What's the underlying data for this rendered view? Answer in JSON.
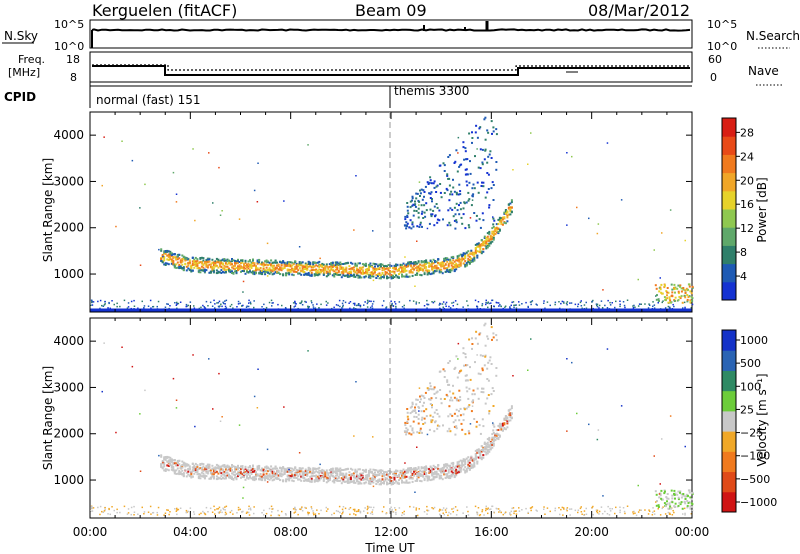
{
  "header": {
    "station": "Kerguelen (fitACF)",
    "beam": "Beam 09",
    "date": "08/Mar/2012"
  },
  "top_panel": {
    "left_label": "N.Sky",
    "right_label": "N.Search",
    "left_ticks": [
      "10^5",
      "10^0"
    ],
    "right_ticks": [
      "10^5",
      "10^0"
    ]
  },
  "freq_panel": {
    "left_label_line1": "Freq.",
    "left_label_line2": "[MHz]",
    "left_ticks": [
      "18",
      "8"
    ],
    "right_label": "Nave",
    "right_ticks": [
      "60",
      "0"
    ],
    "cpid_label": "CPID",
    "cpid_modes": [
      "normal (fast) 151",
      "themis 3300"
    ]
  },
  "chart_data": [
    {
      "type": "heatmap",
      "title": "",
      "xlabel": "Time UT",
      "ylabel": "Slant Range [km]",
      "x_ticks": [
        "00:00",
        "04:00",
        "08:00",
        "12:00",
        "16:00",
        "20:00",
        "00:00"
      ],
      "x_range_hours": [
        0,
        24
      ],
      "y_ticks": [
        1000,
        2000,
        3000,
        4000
      ],
      "ylim": [
        180,
        4500
      ],
      "colorbar": {
        "label": "Power [dB]",
        "ticks": [
          "4",
          "8",
          "12",
          "16",
          "20",
          "24",
          "28"
        ],
        "range": [
          0,
          30
        ],
        "colors": [
          "#1432d2",
          "#1e5ab4",
          "#2f7f6a",
          "#5fa86a",
          "#8fc850",
          "#e6d22a",
          "#f0a628",
          "#f07a1e",
          "#e84a18",
          "#d81e14"
        ]
      },
      "features": [
        {
          "name": "backscatter band",
          "t_start_h": 2.8,
          "t_end_h": 16.8,
          "range_km_start": 1400,
          "range_km_mid": 1050,
          "range_km_end": 2500,
          "peak_power_db": 22
        },
        {
          "name": "high-range plume",
          "t_start_h": 12.5,
          "t_end_h": 16.2,
          "range_km_max": 4300
        },
        {
          "name": "near-range echoes",
          "range_km": [
            250,
            450
          ],
          "power_db": 8
        },
        {
          "name": "late-evening patch",
          "t_start_h": 22.5,
          "t_end_h": 24,
          "range_km": [
            400,
            800
          ],
          "power_db": 18
        }
      ]
    },
    {
      "type": "heatmap",
      "title": "",
      "xlabel": "Time UT",
      "ylabel": "Slant Range [km]",
      "x_ticks": [
        "00:00",
        "04:00",
        "08:00",
        "12:00",
        "16:00",
        "20:00",
        "00:00"
      ],
      "x_range_hours": [
        0,
        24
      ],
      "y_ticks": [
        1000,
        2000,
        3000,
        4000
      ],
      "ylim": [
        180,
        4500
      ],
      "colorbar": {
        "label": "Velocity [m s⁻¹]",
        "ticks": [
          "1000",
          "500",
          "100",
          "25",
          "−25",
          "−100",
          "−500",
          "−1000"
        ],
        "colors": [
          "#1432c8",
          "#2a64b4",
          "#2f8a64",
          "#6ccc3a",
          "#c8c8c8",
          "#f0a828",
          "#f07a1e",
          "#e04a18",
          "#d01414"
        ]
      },
      "features": [
        {
          "name": "ground scatter band",
          "color": "grey",
          "t_start_h": 2.8,
          "t_end_h": 16.8
        },
        {
          "name": "ionospheric scatter",
          "color": "orange/red",
          "t_start_h": 3,
          "t_end_h": 12
        }
      ]
    }
  ]
}
